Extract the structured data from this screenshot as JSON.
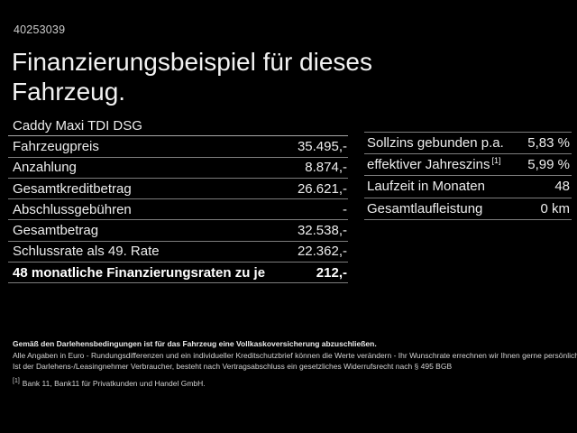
{
  "colors": {
    "background": "#000000",
    "text": "#f2f2f2",
    "divider": "#7d7d7d"
  },
  "header": {
    "vehicle_id": "40253039",
    "title": "Finanzierungsbeispiel für dieses Fahrzeug.",
    "vehicle_name": "Caddy Maxi TDI DSG"
  },
  "finance_table": {
    "rows": [
      {
        "label": "Fahrzeugpreis",
        "value": "35.495,-"
      },
      {
        "label": "Anzahlung",
        "value": "8.874,-"
      },
      {
        "label": "Gesamtkreditbetrag",
        "value": "26.621,-"
      },
      {
        "label": "Abschlussgebühren",
        "value": "-"
      },
      {
        "label": "Gesamtbetrag",
        "value": "32.538,-"
      },
      {
        "label": "Schlussrate als 49. Rate",
        "value": "22.362,-"
      },
      {
        "label": "48 monatliche Finanzierungsraten zu je",
        "value": "212,-"
      }
    ]
  },
  "rates_table": {
    "rows": [
      {
        "label": "Sollzins gebunden p.a.",
        "sup": "",
        "value": "5,83 %"
      },
      {
        "label": "effektiver Jahreszins",
        "sup": "[1]",
        "value": "5,99 %"
      },
      {
        "label": "Laufzeit in Monaten",
        "sup": "",
        "value": "48"
      },
      {
        "label": "Gesamtlaufleistung",
        "sup": "",
        "value": "0 km"
      }
    ]
  },
  "disclaimer": {
    "line1": "Gemäß den Darlehensbedingungen ist für das Fahrzeug eine Vollkaskoversicherung abzuschließen.",
    "line2": "Alle Angaben in Euro - Rundungsdifferenzen und ein individueller Kreditschutzbrief können die Werte verändern - Ihr Wunschrate errechnen wir Ihnen gerne persönlich",
    "line3": "Ist der Darlehens-/Leasingnehmer Verbraucher, besteht nach Vertragsabschluss ein gesetzliches Widerrufsrecht nach § 495 BGB",
    "footnote_marker": "[1]",
    "footnote_text": "Bank 11, Bank11 für Privatkunden und Handel GmbH."
  }
}
